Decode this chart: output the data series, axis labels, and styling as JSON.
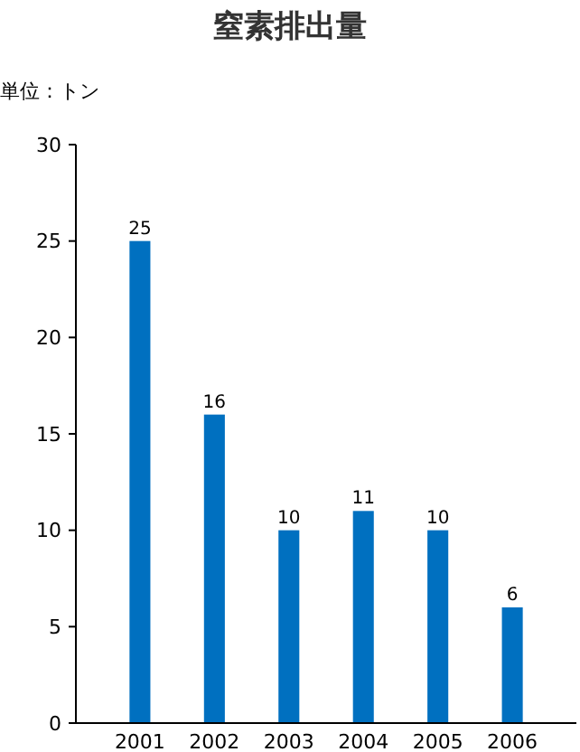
{
  "chart_data": {
    "type": "bar",
    "title": "窒素排出量",
    "annotations": [
      "単位：トン"
    ],
    "categories": [
      "2001",
      "2002",
      "2003",
      "2004",
      "2005",
      "2006"
    ],
    "values": [
      25,
      16,
      10,
      11,
      10,
      6
    ],
    "color": "#0070c0",
    "ylim": [
      0,
      30
    ],
    "yticks": [
      0,
      5,
      10,
      15,
      20,
      25,
      30
    ],
    "grid": false,
    "data_labels": true
  }
}
